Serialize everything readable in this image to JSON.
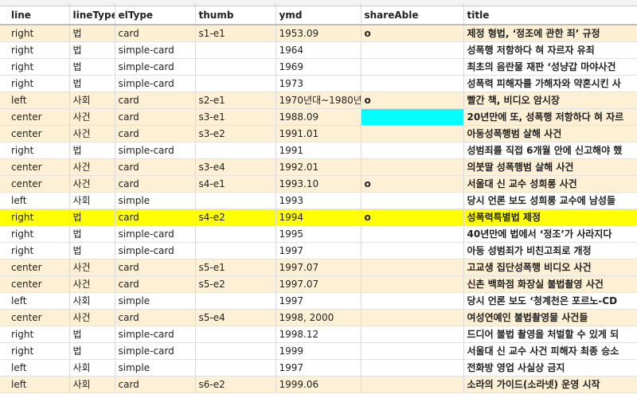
{
  "columns": [
    "line",
    "lineType",
    "elType",
    "thumb",
    "ymd",
    "shareAble",
    "title"
  ],
  "rows": [
    {
      "line": "right",
      "lineType": "법",
      "elType": "card",
      "thumb": "s1-e1",
      "ymd": "1953.09",
      "shareAble": "o",
      "title": "제정 형법, ‘정조에 관한 죄’ 규정"
    },
    {
      "line": "right",
      "lineType": "법",
      "elType": "simple-card",
      "thumb": "",
      "ymd": "1964",
      "shareAble": "",
      "title": "성폭행 저항하다 혀 자르자 유죄"
    },
    {
      "line": "right",
      "lineType": "법",
      "elType": "simple-card",
      "thumb": "",
      "ymd": "1969",
      "shareAble": "",
      "title": "최초의 음란물 재판 ‘성냥갑 마야사건"
    },
    {
      "line": "right",
      "lineType": "법",
      "elType": "simple-card",
      "thumb": "",
      "ymd": "1973",
      "shareAble": "",
      "title": "성폭력 피해자를 가해자와 약혼시킨 사"
    },
    {
      "line": "left",
      "lineType": "사회",
      "elType": "card",
      "thumb": "s2-e1",
      "ymd": "1970년대~1980년",
      "shareAble": "o",
      "title": "빨간 책, 비디오 암시장"
    },
    {
      "line": "center",
      "lineType": "사건",
      "elType": "card",
      "thumb": "s3-e1",
      "ymd": "1988.09",
      "shareAble": "",
      "title": "20년만에 또, 성폭행 저항하다 혀 자르"
    },
    {
      "line": "center",
      "lineType": "사건",
      "elType": "card",
      "thumb": "s3-e2",
      "ymd": "1991.01",
      "shareAble": "",
      "title": "아동성폭행범 살해 사건"
    },
    {
      "line": "right",
      "lineType": "법",
      "elType": "simple-card",
      "thumb": "",
      "ymd": "1991",
      "shareAble": "",
      "title": "성범죄를 직접 6개월 안에 신고해야 했"
    },
    {
      "line": "center",
      "lineType": "사건",
      "elType": "card",
      "thumb": "s3-e4",
      "ymd": "1992.01",
      "shareAble": "",
      "title": "의붓딸 성폭행범 살해 사건"
    },
    {
      "line": "center",
      "lineType": "사건",
      "elType": "card",
      "thumb": "s4-e1",
      "ymd": "1993.10",
      "shareAble": "o",
      "title": "서울대 신 교수 성희롱 사건"
    },
    {
      "line": "left",
      "lineType": "사회",
      "elType": "simple",
      "thumb": "",
      "ymd": "1993",
      "shareAble": "",
      "title": "당시 언론 보도 성희롱 교수에 남성들"
    },
    {
      "line": "right",
      "lineType": "법",
      "elType": "card",
      "thumb": "s4-e2",
      "ymd": "1994",
      "shareAble": "o",
      "title": "성폭력특별법 제정"
    },
    {
      "line": "right",
      "lineType": "법",
      "elType": "simple-card",
      "thumb": "",
      "ymd": "1995",
      "shareAble": "",
      "title": "40년만에 법에서 ‘정조’가 사라지다"
    },
    {
      "line": "right",
      "lineType": "법",
      "elType": "simple-card",
      "thumb": "",
      "ymd": "1997",
      "shareAble": "",
      "title": "아동 성범죄가 비친고죄로 개정"
    },
    {
      "line": "center",
      "lineType": "사건",
      "elType": "card",
      "thumb": "s5-e1",
      "ymd": "1997.07",
      "shareAble": "",
      "title": "고교생 집단성폭행 비디오 사건"
    },
    {
      "line": "center",
      "lineType": "사건",
      "elType": "card",
      "thumb": "s5-e2",
      "ymd": "1997.07",
      "shareAble": "",
      "title": "신촌 백화점 화장실 불법촬영 사건"
    },
    {
      "line": "left",
      "lineType": "사회",
      "elType": "simple",
      "thumb": "",
      "ymd": "1997",
      "shareAble": "",
      "title": "당시 언론 보도 ‘청계천은 포르노-CD"
    },
    {
      "line": "center",
      "lineType": "사건",
      "elType": "card",
      "thumb": "s5-e4",
      "ymd": "1998, 2000",
      "shareAble": "",
      "title": "여성연예인 불법촬영물 사건들"
    },
    {
      "line": "right",
      "lineType": "법",
      "elType": "simple-card",
      "thumb": "",
      "ymd": "1998.12",
      "shareAble": "",
      "title": "드디어 불법 촬영을 처벌할 수 있게 되"
    },
    {
      "line": "right",
      "lineType": "법",
      "elType": "simple-card",
      "thumb": "",
      "ymd": "1999",
      "shareAble": "",
      "title": "서울대 신 교수 사건 피해자 최종 승소"
    },
    {
      "line": "left",
      "lineType": "사회",
      "elType": "simple",
      "thumb": "",
      "ymd": "1997",
      "shareAble": "",
      "title": "전화방 영업 사실상 금지"
    },
    {
      "line": "left",
      "lineType": "사회",
      "elType": "card",
      "thumb": "s6-e2",
      "ymd": "1999.06",
      "shareAble": "",
      "title": "소라의 가이드(소라넷) 운영 시작"
    }
  ],
  "colors": {
    "card_row": "#fdf0d4",
    "highlight_row": "#ffff00",
    "highlight_cell": "#00ffff"
  }
}
